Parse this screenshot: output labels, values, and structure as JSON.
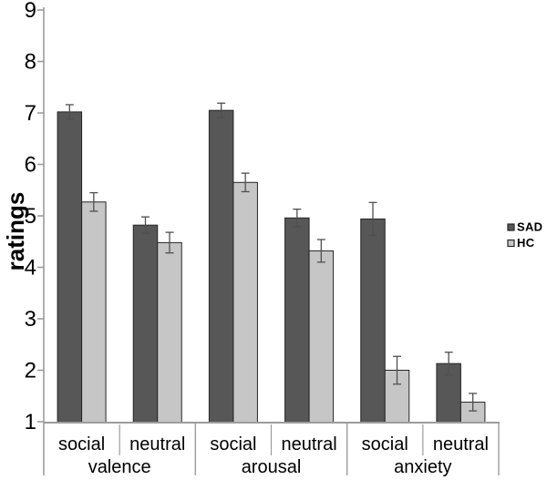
{
  "chart_data": {
    "type": "bar",
    "title": "",
    "ylabel": "ratings",
    "ylim": [
      1,
      9
    ],
    "ytick_step": 1,
    "grid": false,
    "legend_position": "right",
    "groups": [
      {
        "label": "valence",
        "conditions": [
          "social",
          "neutral"
        ]
      },
      {
        "label": "arousal",
        "conditions": [
          "social",
          "neutral"
        ]
      },
      {
        "label": "anxiety",
        "conditions": [
          "social",
          "neutral"
        ]
      }
    ],
    "categories": [
      "valence-social",
      "valence-neutral",
      "arousal-social",
      "arousal-neutral",
      "anxiety-social",
      "anxiety-neutral"
    ],
    "series": [
      {
        "name": "SAD",
        "color": "#575757",
        "values": [
          7.02,
          4.82,
          7.05,
          4.96,
          4.94,
          2.13
        ],
        "errors": [
          0.14,
          0.16,
          0.14,
          0.17,
          0.32,
          0.22
        ]
      },
      {
        "name": "HC",
        "color": "#c6c6c6",
        "values": [
          5.27,
          4.48,
          5.65,
          4.32,
          2.0,
          1.38
        ],
        "errors": [
          0.18,
          0.2,
          0.18,
          0.22,
          0.27,
          0.17
        ]
      }
    ],
    "colors": {
      "bar_border": "#262626",
      "error_bar": "#4f4f4f",
      "axis": "#9c9c9c",
      "text": "#000000"
    }
  }
}
